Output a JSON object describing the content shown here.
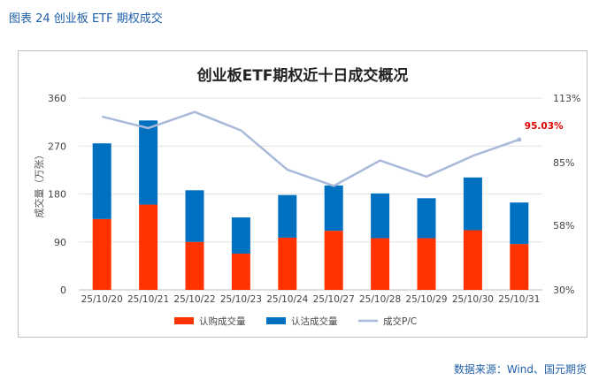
{
  "figure_caption": "图表 24  创业板 ETF 期权成交",
  "source_note": "数据来源：Wind、国元期货",
  "chart_data": {
    "type": "bar",
    "stacked": true,
    "title": "创业板ETF期权近十日成交概况",
    "categories": [
      "25/10/20",
      "25/10/21",
      "25/10/22",
      "25/10/23",
      "25/10/24",
      "25/10/27",
      "25/10/28",
      "25/10/29",
      "25/10/30",
      "25/10/31"
    ],
    "ylabel": "成交量（万张）",
    "ylim": [
      0,
      360
    ],
    "yticks": [
      0,
      90,
      180,
      270,
      360
    ],
    "y2lim": [
      30,
      113
    ],
    "y2ticks": [
      "113%",
      "85%",
      "58%",
      "30%"
    ],
    "y2tick_values": [
      113,
      85,
      58,
      30
    ],
    "series": [
      {
        "name": "认购成交量",
        "color": "#ff3300",
        "kind": "bar",
        "values": [
          133,
          160,
          90,
          68,
          98,
          111,
          97,
          97,
          112,
          86
        ]
      },
      {
        "name": "认沽成交量",
        "color": "#0070c0",
        "kind": "bar",
        "values": [
          142,
          158,
          97,
          68,
          80,
          85,
          84,
          75,
          99,
          78
        ]
      },
      {
        "name": "成交P/C",
        "color": "#a9b9d9",
        "kind": "line",
        "axis": "right",
        "values": [
          105,
          100,
          107,
          99,
          82,
          75,
          86,
          79,
          88,
          95.03
        ]
      }
    ],
    "annotation": {
      "label": "95.03%",
      "color": "#e00000"
    },
    "legend_position": "bottom"
  }
}
